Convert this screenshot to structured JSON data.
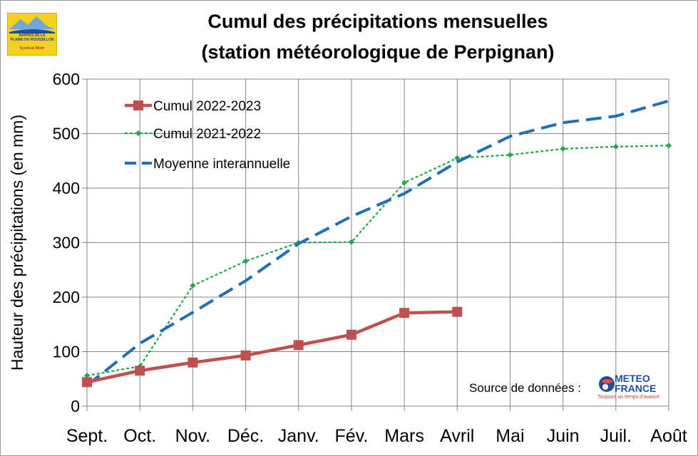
{
  "chart_data": {
    "type": "line",
    "title": "Cumul des précipitations mensuelles",
    "subtitle": "(station météorologique de Perpignan)",
    "xlabel": "",
    "ylabel": "Hauteur des précipitations (en mm)",
    "categories": [
      "Sept.",
      "Oct.",
      "Nov.",
      "Déc.",
      "Janv.",
      "Fév.",
      "Mars",
      "Avril",
      "Mai",
      "Juin",
      "Juil.",
      "Août"
    ],
    "ylim": [
      0,
      600
    ],
    "yticks": [
      0,
      100,
      200,
      300,
      400,
      500,
      600
    ],
    "grid": true,
    "legend_position": "top-left",
    "series": [
      {
        "name": "Cumul 2022-2023",
        "color": "#c0504d",
        "style": "solid-square",
        "values": [
          44,
          65,
          80,
          93,
          112,
          131,
          171,
          173,
          null,
          null,
          null,
          null
        ]
      },
      {
        "name": "Cumul 2021-2022",
        "color": "#21a64b",
        "style": "dotted-diamond",
        "values": [
          56,
          73,
          221,
          266,
          300,
          301,
          410,
          455,
          461,
          472,
          476,
          478
        ]
      },
      {
        "name": "Moyenne interannuelle",
        "color": "#1f6fb5",
        "style": "dashed",
        "values": [
          38,
          115,
          172,
          230,
          298,
          348,
          390,
          448,
          495,
          520,
          532,
          560
        ]
      }
    ]
  },
  "logo": {
    "line1": "NAPPES DE LA",
    "line2": "PLAINE DU ROUSSILLON",
    "line3": "Syndicat Mixte"
  },
  "source_label": "Source de données :",
  "meteo_logo": {
    "line1": "METEO",
    "line2": "FRANCE",
    "tagline": "Toujours un temps d'avance"
  }
}
